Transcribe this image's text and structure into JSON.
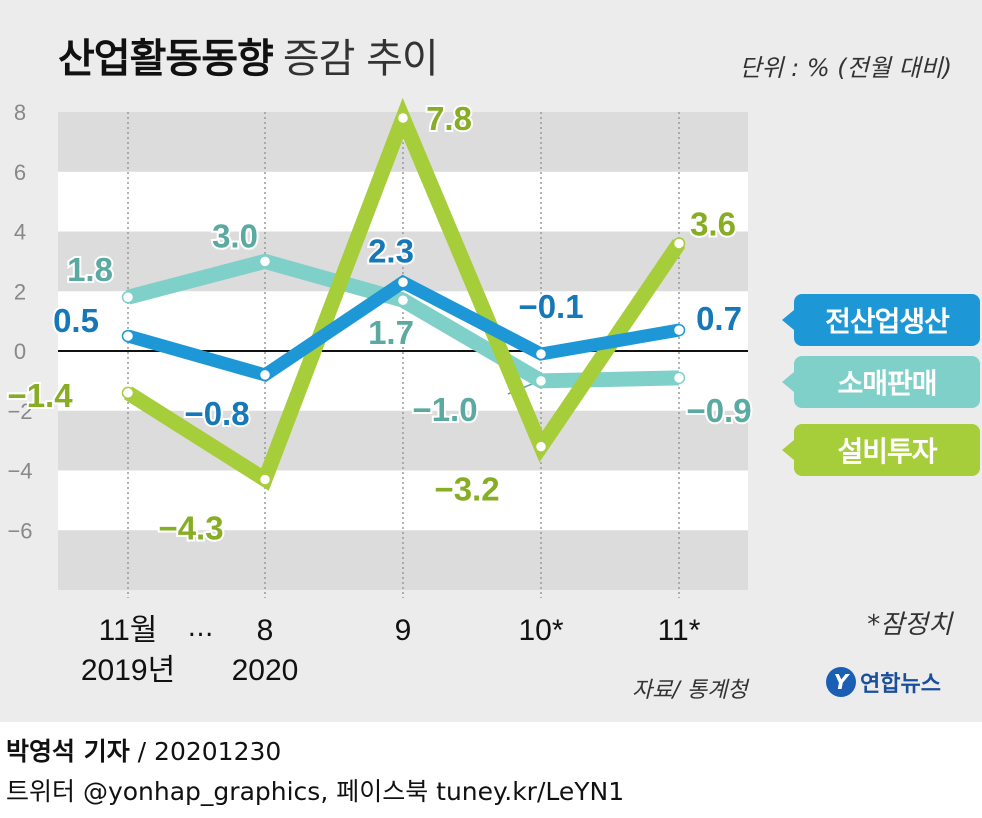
{
  "header": {
    "title": "산업활동동향",
    "subtitle": "증감 추이",
    "unit": "단위 : % (전월 대비)"
  },
  "footer": {
    "note": "*잠정치",
    "source": "자료/ 통계청",
    "logo_text": "연합뉴스",
    "logo_mark": "Y",
    "byline_name": "박영석 기자",
    "byline_sep": " / ",
    "byline_date": "20201230",
    "social": "트위터 @yonhap_graphics, 페이스북 tuney.kr/LeYN1"
  },
  "colors": {
    "production": "#1e97d6",
    "retail": "#7fd0c8",
    "investment": "#a6cd3a",
    "production_label": "#1778b8",
    "retail_label": "#5aaaa2",
    "investment_label": "#86ad24",
    "band": "#dcdcdc",
    "tick": "#888888"
  },
  "chart_data": {
    "type": "line",
    "categories": [
      "11월",
      "8",
      "9",
      "10*",
      "11*"
    ],
    "category_sublabels": [
      "2019년",
      "2020",
      "",
      "",
      ""
    ],
    "break_marker": "…",
    "ylim": [
      -8,
      8
    ],
    "yticks": [
      -6,
      -4,
      -2,
      0,
      2,
      4,
      6,
      8
    ],
    "ytick_labels": [
      "−6",
      "−4",
      "−2",
      "0",
      "2",
      "4",
      "6",
      "8"
    ],
    "series": [
      {
        "name": "전산업생산",
        "key": "production",
        "values": [
          0.5,
          -0.8,
          2.3,
          -0.1,
          0.7
        ],
        "labels": [
          "0.5",
          "−0.8",
          "2.3",
          "−0.1",
          "0.7"
        ]
      },
      {
        "name": "소매판매",
        "key": "retail",
        "values": [
          1.8,
          3.0,
          1.7,
          -1.0,
          -0.9
        ],
        "labels": [
          "1.8",
          "3.0",
          "1.7",
          "−1.0",
          "−0.9"
        ]
      },
      {
        "name": "설비투자",
        "key": "investment",
        "values": [
          -1.4,
          -4.3,
          7.8,
          -3.2,
          3.6
        ],
        "labels": [
          "−1.4",
          "−4.3",
          "7.8",
          "−3.2",
          "3.6"
        ]
      }
    ]
  }
}
